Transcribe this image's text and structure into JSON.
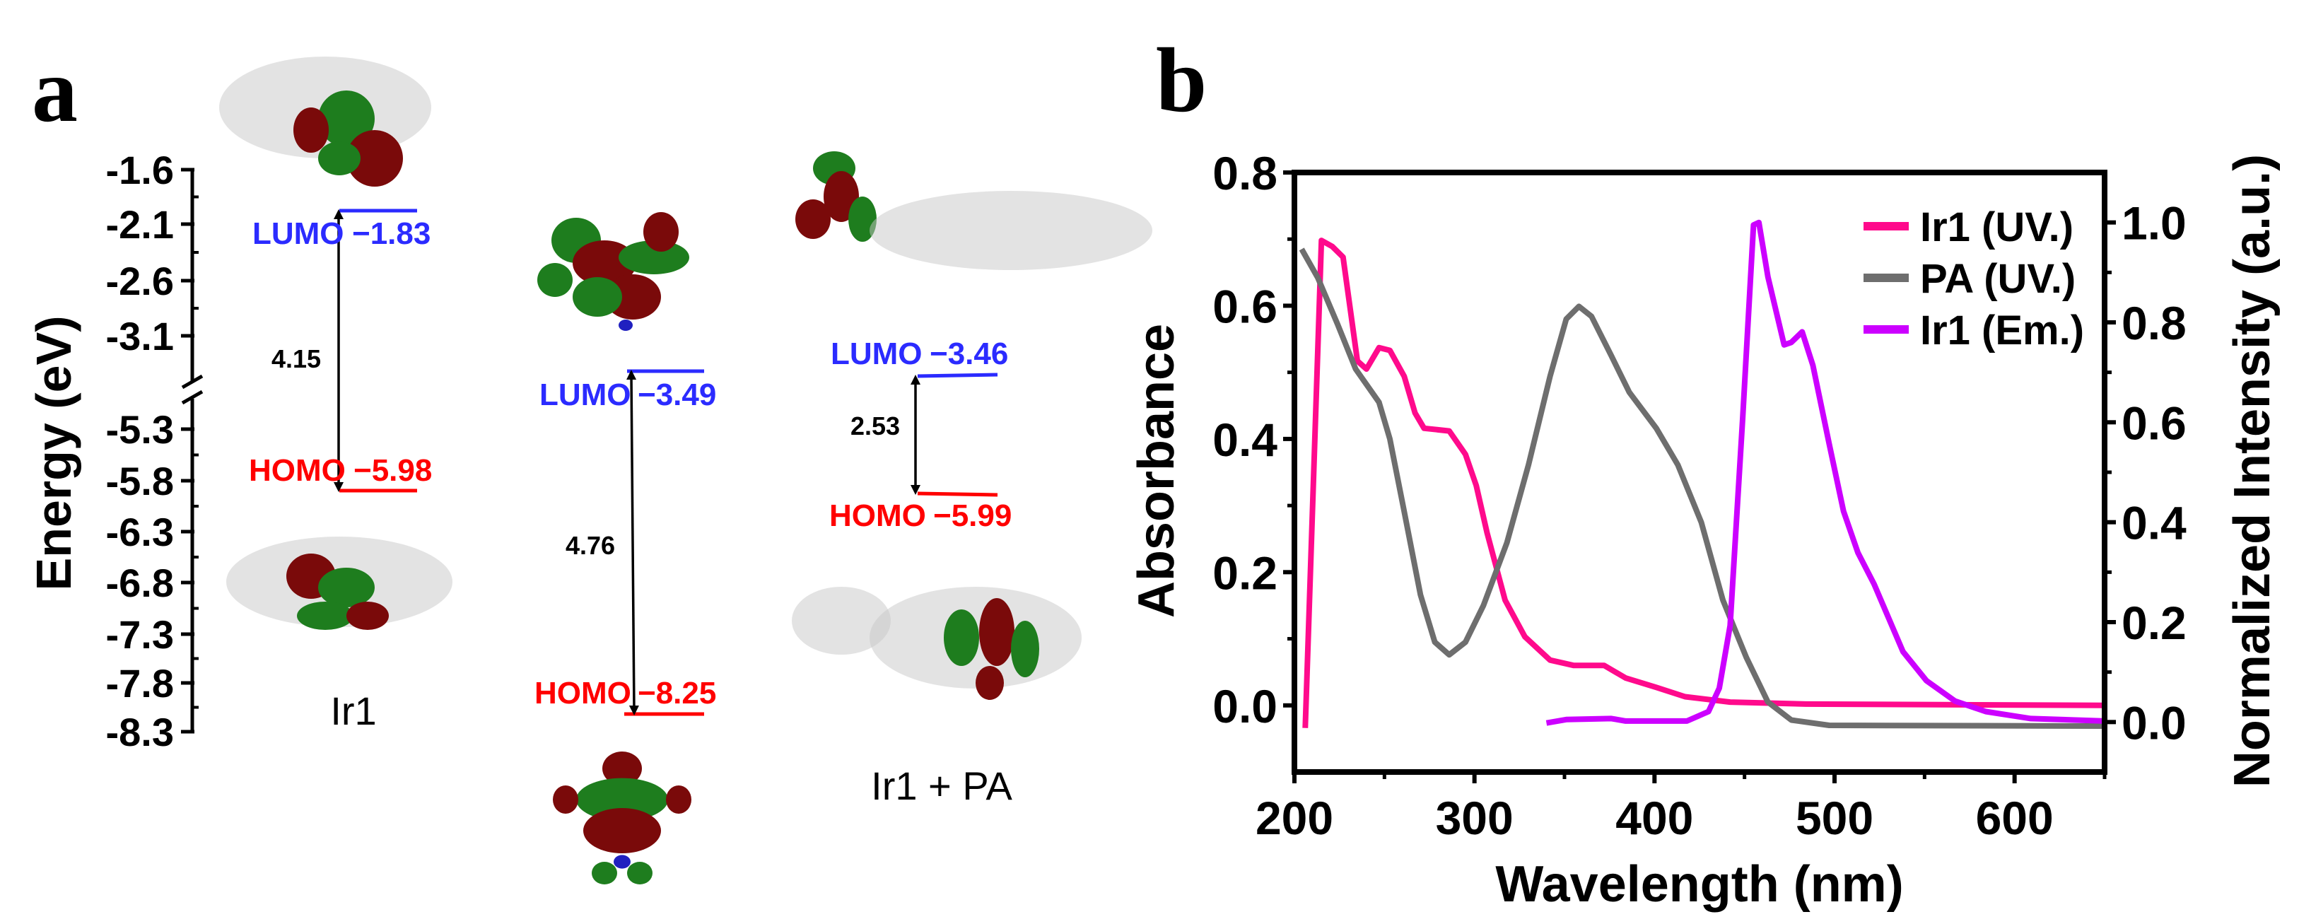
{
  "panel_labels": {
    "a": "a",
    "b": "b"
  },
  "energy_diagram": {
    "ylabel": "Energy (eV)",
    "ticks": [
      "-1.6",
      "-2.1",
      "-2.6",
      "-3.1",
      "-5.3",
      "-5.8",
      "-6.3",
      "-6.8",
      "-7.3",
      "-7.8",
      "-8.3"
    ],
    "axis_break": true,
    "colors": {
      "lumo": "#2b2bff",
      "homo": "#ff0000"
    },
    "systems": [
      {
        "name": "Ir1",
        "lumo_label": "LUMO",
        "lumo": "−1.83",
        "homo_label": "HOMO",
        "homo": "−5.98",
        "gap": "4.15"
      },
      {
        "name": "",
        "lumo_label": "LUMO",
        "lumo": "−3.49",
        "homo_label": "HOMO",
        "homo": "−8.25",
        "gap": "4.76"
      },
      {
        "name": "Ir1 + PA",
        "lumo_label": "LUMO",
        "lumo": "−3.46",
        "homo_label": "HOMO",
        "homo": "−5.99",
        "gap": "2.53"
      }
    ]
  },
  "chart_data": {
    "type": "line",
    "xlabel": "Wavelength (nm)",
    "ylabel": "Absorbance",
    "ylabel_right": "Normalized Intensity (a.u.)",
    "xlim": [
      200,
      650
    ],
    "ylim": [
      -0.1,
      0.8
    ],
    "ylim_right": [
      -0.1,
      1.1
    ],
    "xticks": [
      "200",
      "300",
      "400",
      "500",
      "600"
    ],
    "yticks": [
      "0.0",
      "0.2",
      "0.4",
      "0.6",
      "0.8"
    ],
    "yticks_right": [
      "0.0",
      "0.2",
      "0.4",
      "0.6",
      "0.8",
      "1.0"
    ],
    "legend_position": "top-right",
    "series": [
      {
        "name": "Ir1 (UV.)",
        "axis": "left",
        "color": "#ff0a8c",
        "x": [
          206,
          215,
          221,
          227,
          235,
          240,
          247,
          253,
          261,
          267,
          272,
          286,
          295,
          301,
          307,
          317,
          328,
          342,
          355,
          372,
          384,
          401,
          417,
          442,
          484,
          651
        ],
        "y": [
          -0.034,
          0.698,
          0.689,
          0.673,
          0.517,
          0.505,
          0.537,
          0.533,
          0.494,
          0.439,
          0.416,
          0.412,
          0.377,
          0.33,
          0.259,
          0.158,
          0.103,
          0.068,
          0.06,
          0.06,
          0.041,
          0.027,
          0.013,
          0.005,
          0.002,
          0.0
        ]
      },
      {
        "name": "PA (UV.)",
        "axis": "left",
        "color": "#6e6e6e",
        "x": [
          204,
          213,
          224,
          234,
          247,
          253,
          261,
          270,
          278,
          286,
          295,
          305,
          318,
          330,
          342,
          351,
          358,
          365,
          376,
          386,
          401,
          413,
          426,
          438,
          451,
          463,
          476,
          497,
          651
        ],
        "y": [
          0.685,
          0.642,
          0.572,
          0.505,
          0.455,
          0.4,
          0.291,
          0.166,
          0.095,
          0.076,
          0.095,
          0.15,
          0.244,
          0.361,
          0.494,
          0.58,
          0.599,
          0.584,
          0.525,
          0.47,
          0.416,
          0.361,
          0.275,
          0.158,
          0.072,
          0.005,
          -0.022,
          -0.03,
          -0.031
        ]
      },
      {
        "name": "Ir1 (Em.)",
        "axis": "right",
        "color": "#cc00ff",
        "x": [
          340,
          351,
          376,
          384,
          418,
          430,
          436,
          442,
          449,
          455,
          458,
          463,
          472,
          476,
          482,
          488,
          497,
          505,
          513,
          522,
          538,
          551,
          567,
          584,
          609,
          650
        ],
        "y": [
          -0.002,
          0.005,
          0.007,
          0.002,
          0.002,
          0.021,
          0.068,
          0.193,
          0.609,
          0.995,
          1.0,
          0.891,
          0.755,
          0.76,
          0.781,
          0.714,
          0.557,
          0.422,
          0.339,
          0.276,
          0.141,
          0.083,
          0.042,
          0.021,
          0.007,
          0.002
        ]
      }
    ]
  }
}
